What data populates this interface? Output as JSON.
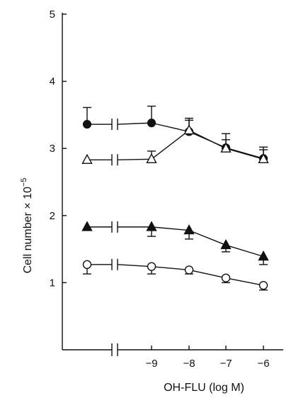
{
  "chart_data": {
    "type": "line",
    "xlabel": "OH-FLU (log M)",
    "ylabel": "Cell number × 10",
    "ylabel_exponent": "−5",
    "ylim": [
      0,
      5
    ],
    "yticks": [
      1,
      2,
      3,
      4,
      5
    ],
    "x_control_label": "",
    "xticks": [
      -9,
      -8,
      -7,
      -6
    ],
    "xtick_labels": [
      "−9",
      "−8",
      "−7",
      "−6"
    ],
    "axis_break": true,
    "grid": false,
    "series": [
      {
        "marker": "filled-circle",
        "control": {
          "y": 3.36,
          "err": 0.25
        },
        "points": [
          {
            "x": -9,
            "y": 3.38,
            "err": 0.25
          },
          {
            "x": -8,
            "y": 3.25,
            "err": 0.2
          },
          {
            "x": -7,
            "y": 3.01,
            "err": 0.21
          },
          {
            "x": -6,
            "y": 2.85,
            "err": 0.17
          }
        ]
      },
      {
        "marker": "open-triangle",
        "control": {
          "y": 2.83,
          "err": 0.0
        },
        "points": [
          {
            "x": -9,
            "y": 2.84,
            "err": 0.12
          },
          {
            "x": -8,
            "y": 3.27,
            "err": 0.15
          },
          {
            "x": -7,
            "y": 3.0,
            "err": 0.13
          },
          {
            "x": -6,
            "y": 2.84,
            "err": 0.14
          }
        ]
      },
      {
        "marker": "filled-triangle",
        "control": {
          "y": 1.83,
          "err": 0.0
        },
        "points": [
          {
            "x": -9,
            "y": 1.83,
            "err": 0.14
          },
          {
            "x": -8,
            "y": 1.78,
            "err": 0.13
          },
          {
            "x": -7,
            "y": 1.56,
            "err": 0.1
          },
          {
            "x": -6,
            "y": 1.39,
            "err": 0.12
          }
        ]
      },
      {
        "marker": "open-circle",
        "control": {
          "y": 1.27,
          "err": 0.14
        },
        "points": [
          {
            "x": -9,
            "y": 1.24,
            "err": 0.11
          },
          {
            "x": -8,
            "y": 1.19,
            "err": 0.06
          },
          {
            "x": -7,
            "y": 1.07,
            "err": 0.07
          },
          {
            "x": -6,
            "y": 0.96,
            "err": 0.07
          }
        ]
      }
    ]
  }
}
